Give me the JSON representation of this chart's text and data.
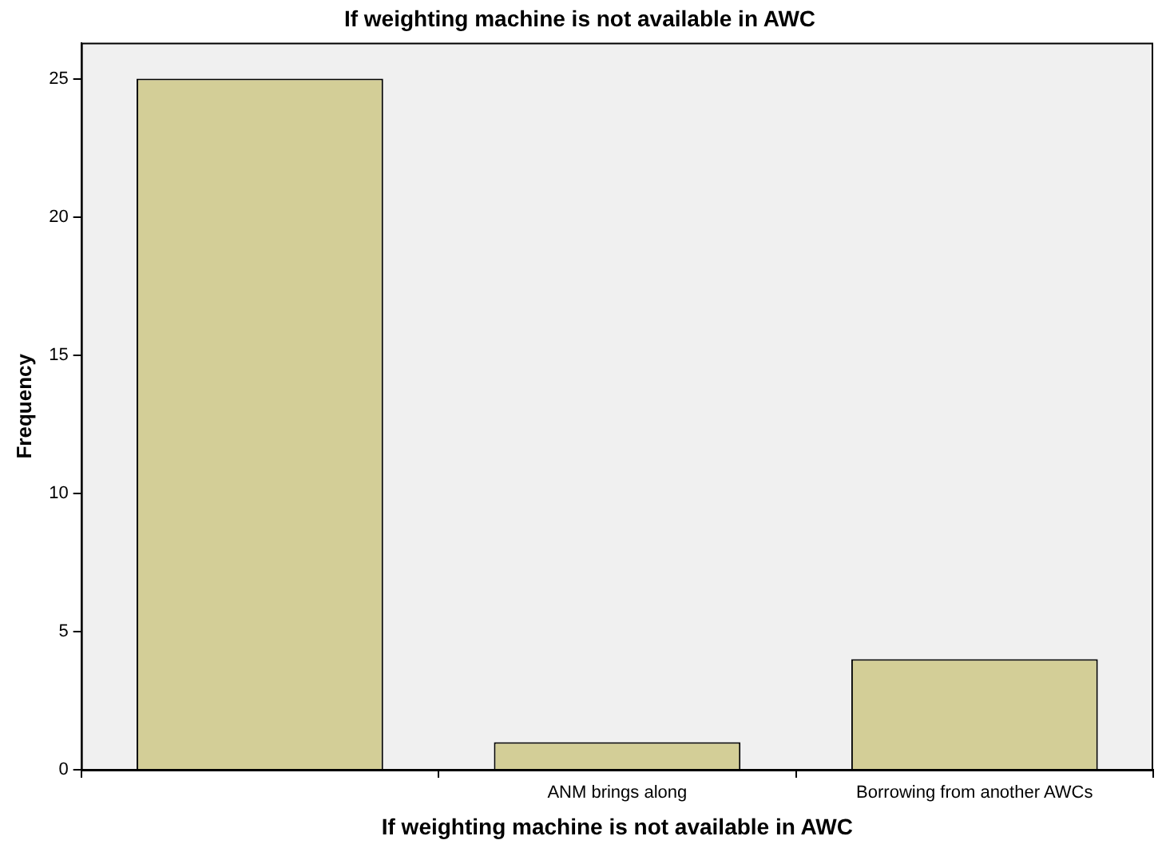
{
  "chart_data": {
    "type": "bar",
    "title": "If weighting machine is not available in AWC",
    "xlabel": "If weighting machine is not available in AWC",
    "ylabel": "Frequency",
    "categories": [
      null,
      "ANM brings along",
      "Borrowing from another AWCs"
    ],
    "values": [
      25,
      1,
      4
    ],
    "color": "#d3ce97",
    "ylim": [
      0,
      26.3
    ],
    "yticks": [
      0,
      5,
      10,
      15,
      20,
      25
    ],
    "grid": false,
    "legend": false
  }
}
